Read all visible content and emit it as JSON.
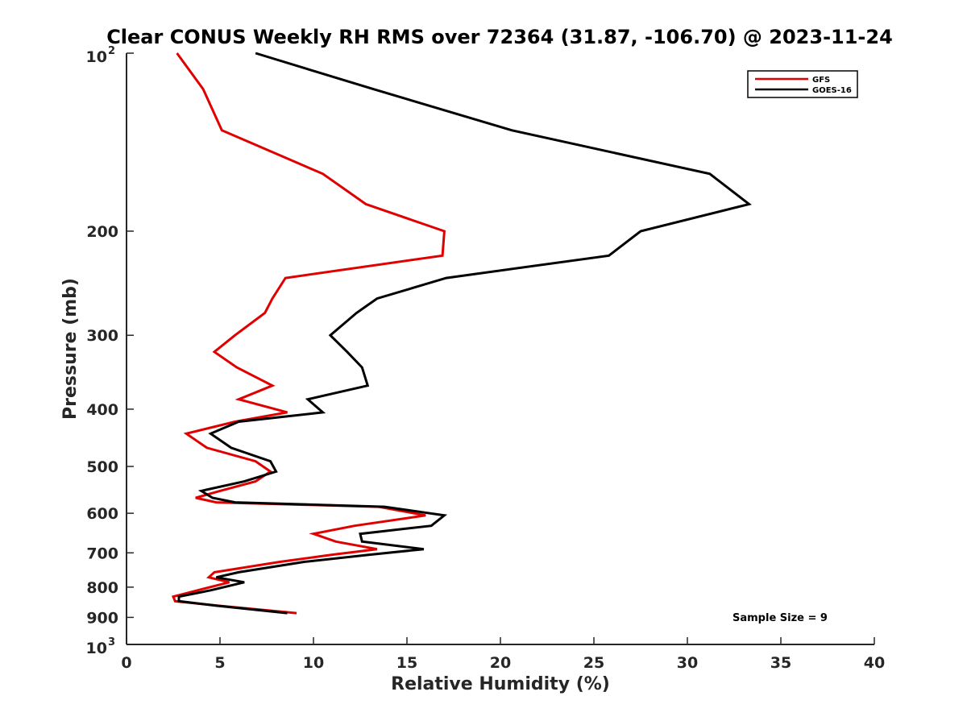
{
  "chart_data": {
    "type": "line",
    "title": "Clear CONUS Weekly RH RMS over 72364 (31.87, -106.70) @ 2023-11-24",
    "xlabel": "Relative Humidity (%)",
    "ylabel": "Pressure (mb)",
    "xlim": [
      0,
      40
    ],
    "ylim": [
      100,
      1000
    ],
    "y_scale": "log",
    "y_reversed": true,
    "x_ticks": [
      "0",
      "5",
      "10",
      "15",
      "20",
      "25",
      "30",
      "35",
      "40"
    ],
    "y_ticks": [
      {
        "value": 100,
        "base": "10",
        "exp": "2"
      },
      {
        "value": 200,
        "label": "200"
      },
      {
        "value": 300,
        "label": "300"
      },
      {
        "value": 400,
        "label": "400"
      },
      {
        "value": 500,
        "label": "500"
      },
      {
        "value": 600,
        "label": "600"
      },
      {
        "value": 700,
        "label": "700"
      },
      {
        "value": 800,
        "label": "800"
      },
      {
        "value": 900,
        "label": "900"
      },
      {
        "value": 1000,
        "base": "10",
        "exp": "3"
      }
    ],
    "grid": false,
    "legend_position": "top-right",
    "annotation": "Sample Size = 9",
    "series": [
      {
        "name": "GFS",
        "color": "#e00000",
        "points": [
          [
            2.7,
            100
          ],
          [
            4.1,
            115
          ],
          [
            5.1,
            135
          ],
          [
            10.5,
            160
          ],
          [
            12.8,
            180
          ],
          [
            17.0,
            200
          ],
          [
            16.9,
            220
          ],
          [
            8.5,
            240
          ],
          [
            7.8,
            260
          ],
          [
            7.4,
            275
          ],
          [
            5.8,
            300
          ],
          [
            4.7,
            320
          ],
          [
            5.9,
            340
          ],
          [
            7.8,
            365
          ],
          [
            6.0,
            385
          ],
          [
            8.6,
            405
          ],
          [
            5.8,
            420
          ],
          [
            3.2,
            440
          ],
          [
            4.3,
            465
          ],
          [
            6.9,
            490
          ],
          [
            7.7,
            510
          ],
          [
            6.9,
            530
          ],
          [
            5.0,
            550
          ],
          [
            3.7,
            565
          ],
          [
            4.8,
            575
          ],
          [
            13.5,
            585
          ],
          [
            16.0,
            605
          ],
          [
            12.2,
            630
          ],
          [
            10.0,
            650
          ],
          [
            11.2,
            670
          ],
          [
            13.4,
            690
          ],
          [
            11.0,
            705
          ],
          [
            8.2,
            725
          ],
          [
            4.7,
            755
          ],
          [
            4.4,
            770
          ],
          [
            5.5,
            785
          ],
          [
            3.8,
            810
          ],
          [
            2.5,
            830
          ],
          [
            2.6,
            845
          ],
          [
            4.9,
            860
          ],
          [
            9.1,
            885
          ]
        ]
      },
      {
        "name": "GOES-16",
        "color": "#000000",
        "points": [
          [
            6.9,
            100
          ],
          [
            13.2,
            115
          ],
          [
            20.6,
            135
          ],
          [
            31.2,
            160
          ],
          [
            33.3,
            180
          ],
          [
            27.5,
            200
          ],
          [
            25.8,
            220
          ],
          [
            17.1,
            240
          ],
          [
            13.4,
            260
          ],
          [
            12.3,
            275
          ],
          [
            10.9,
            300
          ],
          [
            11.8,
            320
          ],
          [
            12.6,
            340
          ],
          [
            12.9,
            365
          ],
          [
            9.7,
            385
          ],
          [
            10.5,
            405
          ],
          [
            6.0,
            420
          ],
          [
            4.5,
            440
          ],
          [
            5.6,
            465
          ],
          [
            7.7,
            490
          ],
          [
            8.0,
            510
          ],
          [
            6.3,
            530
          ],
          [
            4.0,
            550
          ],
          [
            4.6,
            565
          ],
          [
            5.8,
            575
          ],
          [
            13.8,
            585
          ],
          [
            17.0,
            605
          ],
          [
            16.3,
            630
          ],
          [
            12.5,
            650
          ],
          [
            12.6,
            670
          ],
          [
            15.9,
            690
          ],
          [
            13.0,
            705
          ],
          [
            9.5,
            725
          ],
          [
            6.0,
            755
          ],
          [
            4.8,
            770
          ],
          [
            6.3,
            785
          ],
          [
            4.5,
            810
          ],
          [
            2.8,
            830
          ],
          [
            2.8,
            845
          ],
          [
            4.8,
            860
          ],
          [
            8.6,
            885
          ]
        ]
      }
    ]
  }
}
